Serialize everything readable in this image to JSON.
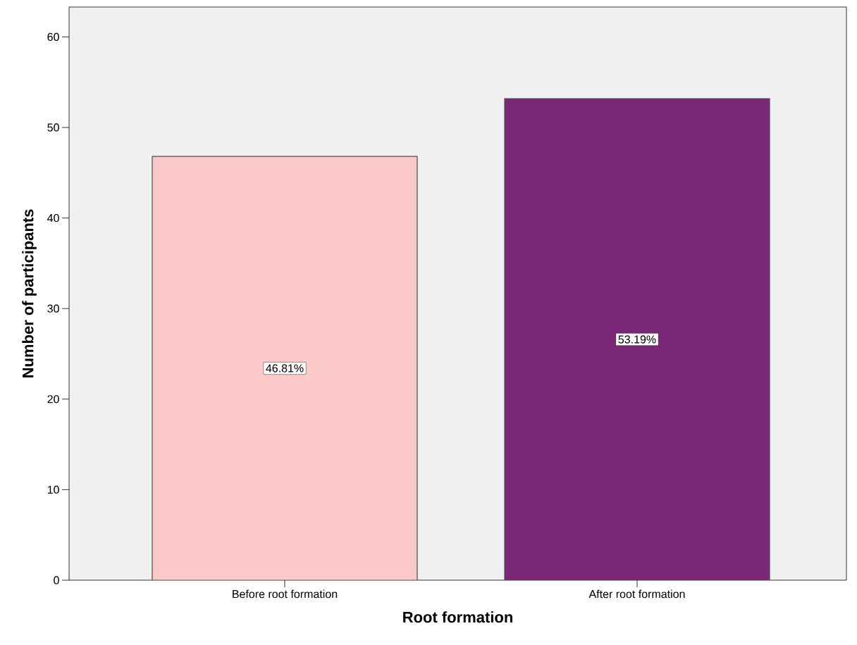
{
  "chart_data": {
    "type": "bar",
    "xlabel": "Root formation",
    "ylabel": "Number of participants",
    "categories": [
      "Before root formation",
      "After root formation"
    ],
    "values": [
      46.81,
      53.19
    ],
    "value_labels": [
      "46.81%",
      "53.19%"
    ],
    "colors": [
      "#fcc9c9",
      "#7b2879"
    ],
    "ylim": [
      0,
      63.3
    ],
    "yticks": [
      0,
      10,
      20,
      30,
      40,
      50,
      60
    ]
  }
}
